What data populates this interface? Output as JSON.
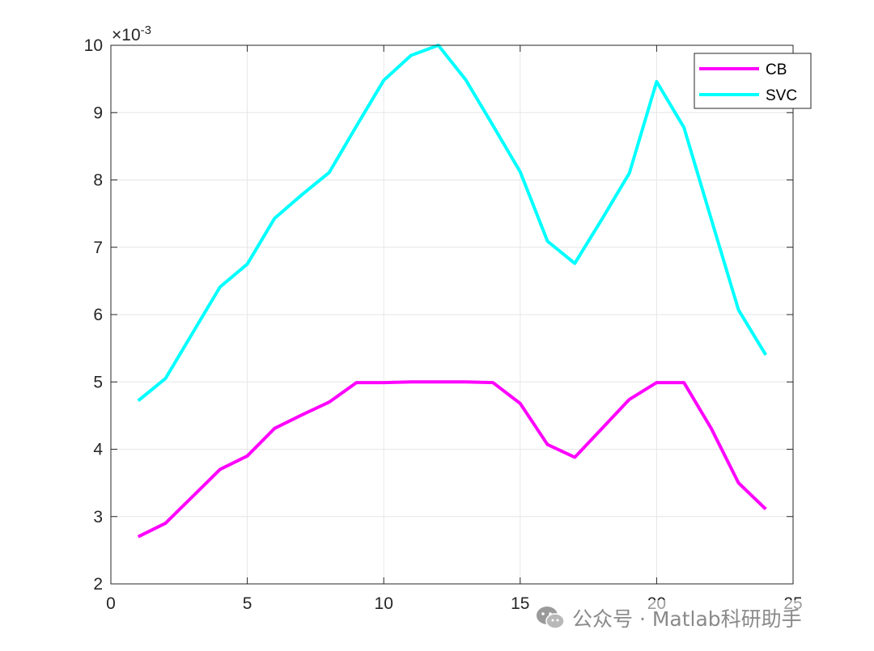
{
  "chart_data": {
    "type": "line",
    "title": "",
    "xlabel": "",
    "ylabel": "",
    "xlim": [
      0,
      25
    ],
    "ylim": [
      0.002,
      0.01
    ],
    "xticks": [
      0,
      5,
      10,
      15,
      20,
      25
    ],
    "yticks": [
      2,
      3,
      4,
      5,
      6,
      7,
      8,
      9,
      10
    ],
    "y_exponent_label": "×10",
    "y_exponent_power": "-3",
    "grid": true,
    "legend_position": "top-right",
    "x": [
      1,
      2,
      3,
      4,
      5,
      6,
      7,
      8,
      9,
      10,
      11,
      12,
      13,
      14,
      15,
      16,
      17,
      18,
      19,
      20,
      21,
      22,
      23,
      24
    ],
    "series": [
      {
        "name": "CB",
        "color": "#ff00ff",
        "values": [
          0.0027,
          0.0029,
          0.0033,
          0.0037,
          0.0039,
          0.00431,
          0.00451,
          0.0047,
          0.00499,
          0.00499,
          0.005,
          0.005,
          0.005,
          0.00499,
          0.00468,
          0.00407,
          0.00388,
          0.00431,
          0.00474,
          0.00499,
          0.00499,
          0.00431,
          0.0035,
          0.00311
        ]
      },
      {
        "name": "SVC",
        "color": "#00ffff",
        "values": [
          0.00472,
          0.00505,
          0.00573,
          0.00641,
          0.00675,
          0.00743,
          0.00778,
          0.00811,
          0.0088,
          0.00948,
          0.00985,
          0.01,
          0.00949,
          0.00881,
          0.00812,
          0.00709,
          0.00676,
          0.00742,
          0.0081,
          0.00946,
          0.00878,
          0.00742,
          0.00607,
          0.0054
        ]
      }
    ]
  },
  "watermark": {
    "icon": "wechat-icon",
    "text": "公众号 · Matlab科研助手"
  }
}
